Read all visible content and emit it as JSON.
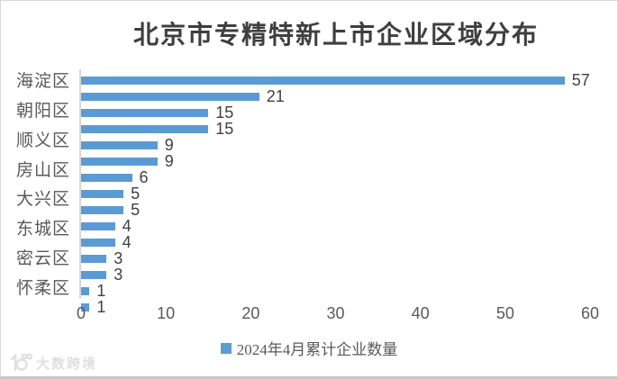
{
  "title": "北京市专精特新上市企业区域分布",
  "legend": {
    "label": "2024年4月累计企业数量",
    "swatch_color": "#5B9BD5"
  },
  "watermark": {
    "icon": "dashukuajing-logo-icon",
    "text": "大数跨境"
  },
  "colors": {
    "bar": "#5B9BD5",
    "title_text": "#3f3f3f",
    "axis_text": "#595959",
    "data_label_text": "#404040",
    "axis_line": "#d6d6d6",
    "watermark_text": "#e0e0e0"
  },
  "chart_data": {
    "type": "bar",
    "orientation": "horizontal",
    "title": "北京市专精特新上市企业区域分布",
    "series_name": "2024年4月累计企业数量",
    "bars": [
      {
        "label": "海淀区",
        "value": 57
      },
      {
        "label": "",
        "value": 21
      },
      {
        "label": "朝阳区",
        "value": 15
      },
      {
        "label": "",
        "value": 15
      },
      {
        "label": "顺义区",
        "value": 9
      },
      {
        "label": "",
        "value": 9
      },
      {
        "label": "房山区",
        "value": 6
      },
      {
        "label": "",
        "value": 5
      },
      {
        "label": "大兴区",
        "value": 5
      },
      {
        "label": "",
        "value": 4
      },
      {
        "label": "东城区",
        "value": 4
      },
      {
        "label": "",
        "value": 3
      },
      {
        "label": "密云区",
        "value": 3
      },
      {
        "label": "",
        "value": 1
      },
      {
        "label": "怀柔区",
        "value": 1
      }
    ],
    "x_ticks": [
      0,
      10,
      20,
      30,
      40,
      50,
      60
    ],
    "xlim": [
      0,
      60
    ],
    "grid": false,
    "data_labels": true,
    "legend_position": "bottom",
    "layout_note": "category labels shown on alternating bars only"
  }
}
